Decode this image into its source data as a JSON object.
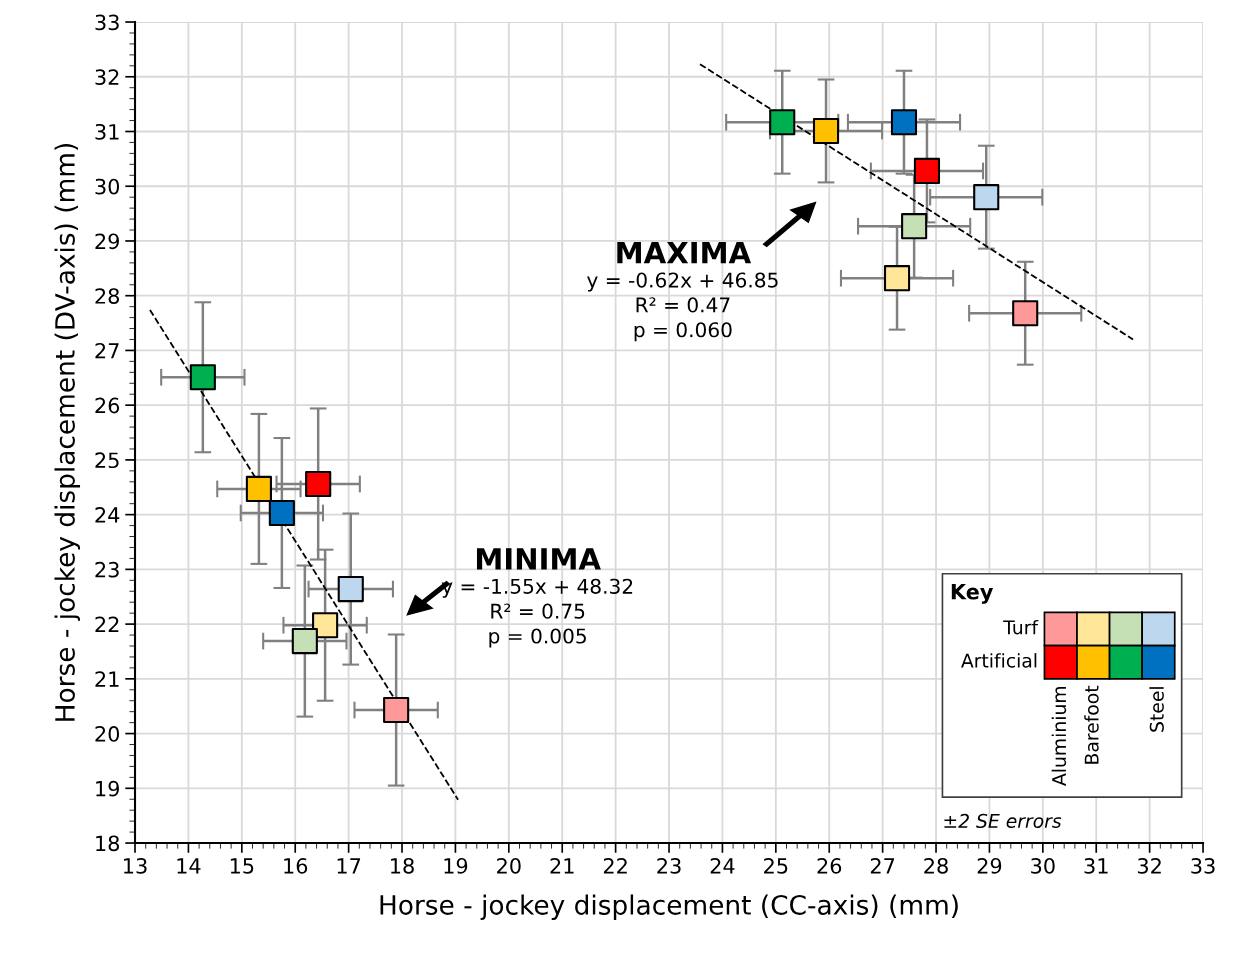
{
  "chart_data": {
    "type": "scatter",
    "xlabel": "Horse - jockey displacement (CC-axis) (mm)",
    "ylabel": "Horse - jockey displacement (DV-axis) (mm)",
    "xlim": [
      13,
      33
    ],
    "ylim": [
      18,
      33
    ],
    "xticks": [
      13,
      14,
      15,
      16,
      17,
      18,
      19,
      20,
      21,
      22,
      23,
      24,
      25,
      26,
      27,
      28,
      29,
      30,
      31,
      32,
      33
    ],
    "yticks": [
      18,
      19,
      20,
      21,
      22,
      23,
      24,
      25,
      26,
      27,
      28,
      29,
      30,
      31,
      32,
      33
    ],
    "grid": true,
    "legend": "bottom right",
    "marker": "square",
    "series": [
      {
        "name": "Aluminium",
        "x": [
          17.89,
          16.43,
          29.67,
          27.83
        ],
        "values": [
          20.43,
          24.56,
          27.68,
          30.28
        ],
        "colors": [
          "#ff9999",
          "#ff0000",
          "#ff9999",
          "#ff0000"
        ],
        "errors": [
          1.38,
          1.38,
          0.94,
          0.94
        ],
        "xerrors": [
          0.78,
          0.78,
          1.05,
          1.05
        ]
      },
      {
        "name": "Barefoot",
        "x": [
          16.56,
          15.32,
          27.27,
          25.94
        ],
        "values": [
          21.98,
          24.47,
          28.32,
          31.01
        ],
        "colors": [
          "#ffe699",
          "#ffc000",
          "#ffe699",
          "#ffc000"
        ],
        "errors": [
          1.38,
          1.37,
          0.94,
          0.94
        ],
        "xerrors": [
          0.78,
          0.78,
          1.05,
          1.05
        ]
      },
      {
        "x": [
          16.18,
          14.27,
          27.59,
          25.12
        ],
        "values": [
          21.69,
          26.51,
          29.27,
          31.17
        ],
        "colors": [
          "#c5e0b4",
          "#00b050",
          "#c5e0b4",
          "#00b050"
        ],
        "errors": [
          1.38,
          1.37,
          0.94,
          0.94
        ],
        "xerrors": [
          0.78,
          0.78,
          1.05,
          1.05
        ]
      },
      {
        "name": "Steel",
        "x": [
          17.04,
          15.75,
          28.94,
          27.4
        ],
        "values": [
          22.64,
          24.03,
          29.8,
          31.17
        ],
        "colors": [
          "#bdd7ee",
          "#0070c0",
          "#bdd7ee",
          "#0070c0"
        ],
        "errors": [
          1.38,
          1.37,
          0.94,
          0.94
        ],
        "xerrors": [
          0.79,
          0.77,
          1.05,
          1.05
        ]
      },
      {
        "type": "line",
        "x": [
          13.28,
          19.05
        ],
        "values": [
          27.74,
          18.79
        ],
        "color": "#000000",
        "line_style": "dashed",
        "marker": "none"
      },
      {
        "type": "line",
        "x": [
          23.58,
          31.69
        ],
        "values": [
          32.23,
          27.2
        ],
        "color": "#000000",
        "line_style": "dashed",
        "marker": "none"
      }
    ],
    "annotations": [
      "MAXIMA",
      "y = -0.62x + 46.85\nR² = 0.47\np = 0.060",
      "MINIMA",
      "y = -1.55x + 48.32\nR² = 0.75\np = 0.005",
      "Key",
      "Turf",
      "Artificial",
      "±2 SE errors"
    ]
  }
}
